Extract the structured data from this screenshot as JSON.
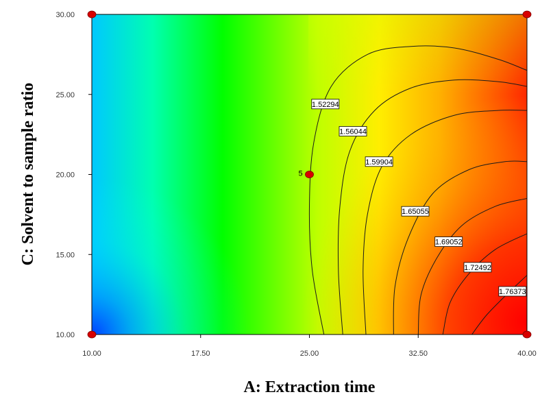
{
  "chart_data": {
    "type": "contour",
    "xlabel": "A: Extraction time",
    "ylabel": "C: Solvent to sample ratio",
    "xlim": [
      10,
      40
    ],
    "ylim": [
      10,
      30
    ],
    "x_ticks": [
      "10.00",
      "17.50",
      "25.00",
      "32.50",
      "40.00"
    ],
    "y_ticks": [
      "10.00",
      "15.00",
      "20.00",
      "25.00",
      "30.00"
    ],
    "colormap": [
      "#0050ff",
      "#00ffff",
      "#00ff00",
      "#ffff00",
      "#ff8000",
      "#ff0000"
    ],
    "contours": [
      {
        "label": "1.52294",
        "points": [
          [
            26.0,
            10.0
          ],
          [
            25.2,
            14.0
          ],
          [
            25.0,
            18.0
          ],
          [
            25.3,
            22.0
          ],
          [
            26.5,
            25.5
          ],
          [
            29.0,
            27.5
          ],
          [
            32.0,
            28.0
          ],
          [
            35.0,
            27.9
          ],
          [
            38.0,
            27.2
          ],
          [
            40.0,
            26.5
          ]
        ],
        "label_at": [
          26.1,
          24.4
        ]
      },
      {
        "label": "1.56044",
        "points": [
          [
            27.3,
            10.0
          ],
          [
            27.0,
            14.0
          ],
          [
            27.1,
            18.0
          ],
          [
            27.8,
            21.5
          ],
          [
            29.5,
            24.0
          ],
          [
            32.0,
            25.4
          ],
          [
            35.0,
            25.9
          ],
          [
            38.0,
            25.8
          ],
          [
            40.0,
            25.5
          ]
        ],
        "label_at": [
          28.0,
          22.7
        ]
      },
      {
        "label": "1.59904",
        "points": [
          [
            28.9,
            10.0
          ],
          [
            28.7,
            14.0
          ],
          [
            29.0,
            17.5
          ],
          [
            30.0,
            20.5
          ],
          [
            32.0,
            22.5
          ],
          [
            35.0,
            23.7
          ],
          [
            38.0,
            24.0
          ],
          [
            40.0,
            24.0
          ]
        ],
        "label_at": [
          29.8,
          20.8
        ]
      },
      {
        "label": "1.65055",
        "points": [
          [
            30.8,
            10.0
          ],
          [
            30.9,
            13.0
          ],
          [
            31.8,
            16.0
          ],
          [
            33.5,
            18.8
          ],
          [
            36.0,
            20.3
          ],
          [
            38.5,
            20.8
          ],
          [
            40.0,
            20.8
          ]
        ],
        "label_at": [
          32.3,
          17.7
        ]
      },
      {
        "label": "1.69052",
        "points": [
          [
            32.5,
            10.0
          ],
          [
            32.7,
            12.5
          ],
          [
            33.8,
            14.8
          ],
          [
            35.5,
            16.8
          ],
          [
            37.8,
            18.0
          ],
          [
            40.0,
            18.5
          ]
        ],
        "label_at": [
          34.6,
          15.8
        ]
      },
      {
        "label": "1.72492",
        "points": [
          [
            34.2,
            10.0
          ],
          [
            34.7,
            12.0
          ],
          [
            36.0,
            13.8
          ],
          [
            37.8,
            15.3
          ],
          [
            40.0,
            16.3
          ]
        ],
        "label_at": [
          36.6,
          14.2
        ]
      },
      {
        "label": "1.76373",
        "points": [
          [
            36.2,
            10.0
          ],
          [
            37.2,
            11.2
          ],
          [
            38.6,
            12.5
          ],
          [
            40.0,
            13.7
          ]
        ],
        "label_at": [
          39.0,
          12.7
        ]
      }
    ],
    "design_points": [
      {
        "x": 10,
        "y": 10
      },
      {
        "x": 40,
        "y": 10
      },
      {
        "x": 10,
        "y": 30
      },
      {
        "x": 40,
        "y": 30
      },
      {
        "x": 25,
        "y": 20,
        "label": "5"
      }
    ]
  }
}
